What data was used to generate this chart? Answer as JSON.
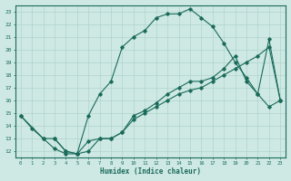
{
  "xlabel": "Humidex (Indice chaleur)",
  "xlim": [
    -0.5,
    23.5
  ],
  "ylim": [
    11.5,
    23.5
  ],
  "yticks": [
    12,
    13,
    14,
    15,
    16,
    17,
    18,
    19,
    20,
    21,
    22,
    23
  ],
  "xticks": [
    0,
    1,
    2,
    3,
    4,
    5,
    6,
    7,
    8,
    9,
    10,
    11,
    12,
    13,
    14,
    15,
    16,
    17,
    18,
    19,
    20,
    21,
    22,
    23
  ],
  "bg_color": "#cee8e4",
  "grid_color": "#b0d4cc",
  "line_color": "#1a6b5a",
  "line1_x": [
    0,
    1,
    2,
    3,
    4,
    5,
    6,
    7,
    8,
    9,
    10,
    11,
    12,
    13,
    14,
    15,
    16,
    17,
    18,
    19,
    20,
    21,
    22,
    23
  ],
  "line1_y": [
    14.8,
    13.8,
    13.0,
    12.2,
    11.8,
    11.8,
    14.8,
    16.5,
    17.5,
    20.2,
    21.0,
    21.5,
    22.5,
    22.8,
    22.8,
    23.2,
    22.5,
    21.8,
    20.5,
    19.0,
    17.8,
    16.5,
    20.8,
    16.0
  ],
  "line2_x": [
    0,
    2,
    3,
    4,
    5,
    6,
    7,
    8,
    9,
    10,
    11,
    12,
    13,
    14,
    15,
    16,
    17,
    18,
    19,
    20,
    21,
    22,
    23
  ],
  "line2_y": [
    14.8,
    13.0,
    13.0,
    12.0,
    11.8,
    12.8,
    13.0,
    13.0,
    13.5,
    14.5,
    15.0,
    15.5,
    16.0,
    16.5,
    16.8,
    17.0,
    17.5,
    18.0,
    18.5,
    19.0,
    19.5,
    20.2,
    16.0
  ],
  "line3_x": [
    3,
    4,
    5,
    6,
    7,
    8,
    9,
    10,
    11,
    12,
    13,
    14,
    15,
    16,
    17,
    18,
    19,
    20,
    21,
    22,
    23
  ],
  "line3_y": [
    13.0,
    12.0,
    11.8,
    12.0,
    13.0,
    13.0,
    13.5,
    14.8,
    15.2,
    15.8,
    16.5,
    17.0,
    17.5,
    17.5,
    17.8,
    18.5,
    19.5,
    17.5,
    16.5,
    15.5,
    16.0
  ]
}
